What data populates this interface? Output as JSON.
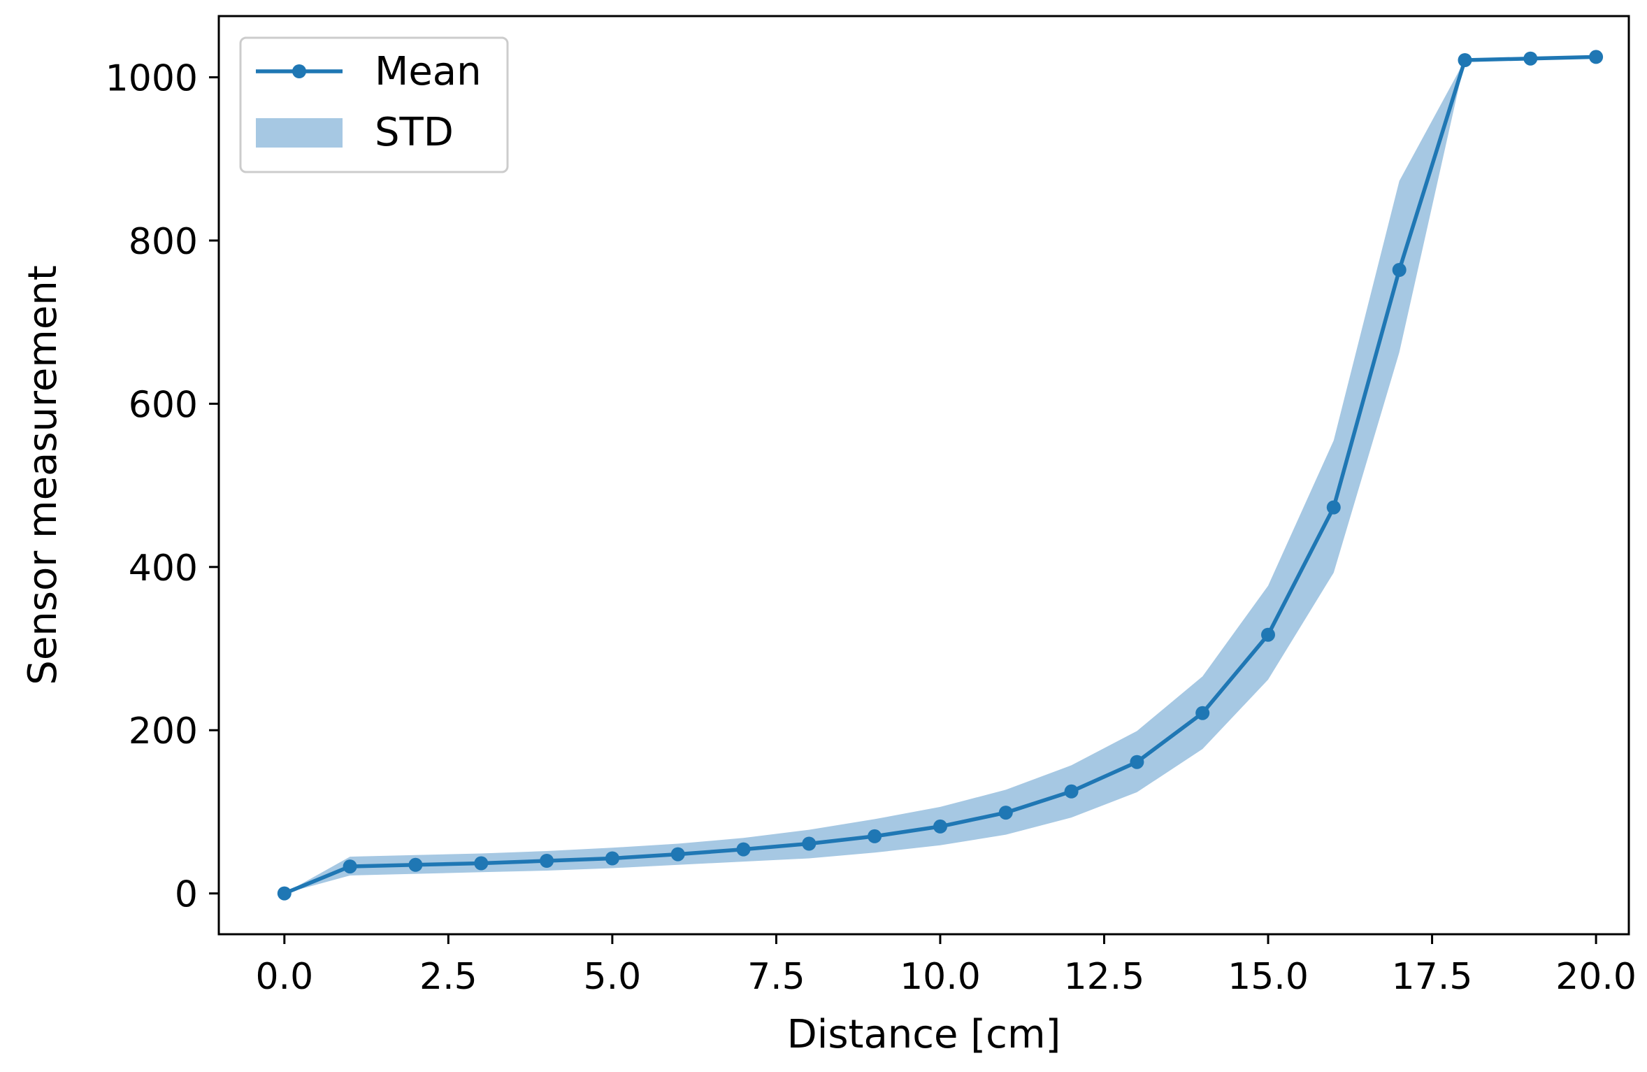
{
  "chart_data": {
    "type": "line",
    "title": "",
    "xlabel": "Distance [cm]",
    "ylabel": "Sensor measurement",
    "xlim": [
      -1,
      20.5
    ],
    "ylim": [
      -50,
      1075
    ],
    "xticks": [
      0.0,
      2.5,
      5.0,
      7.5,
      10.0,
      12.5,
      15.0,
      17.5,
      20.0
    ],
    "xtick_labels": [
      "0.0",
      "2.5",
      "5.0",
      "7.5",
      "10.0",
      "12.5",
      "15.0",
      "17.5",
      "20.0"
    ],
    "yticks": [
      0,
      200,
      400,
      600,
      800,
      1000
    ],
    "ytick_labels": [
      "0",
      "200",
      "400",
      "600",
      "800",
      "1000"
    ],
    "grid": false,
    "legend_position": "top-left",
    "color": "#1f77b4",
    "band_color": "#a6c8e3",
    "x": [
      0,
      1,
      2,
      3,
      4,
      5,
      6,
      7,
      8,
      9,
      10,
      11,
      12,
      13,
      14,
      15,
      16,
      17,
      18,
      19,
      20
    ],
    "series": [
      {
        "name": "Mean",
        "values": [
          0,
          33,
          35,
          37,
          40,
          43,
          48,
          54,
          61,
          70,
          82,
          99,
          125,
          161,
          221,
          317,
          473,
          764,
          1021,
          1023,
          1025
        ]
      },
      {
        "name": "STD",
        "lower": [
          0,
          22,
          24,
          26,
          28,
          31,
          35,
          39,
          43,
          50,
          59,
          72,
          93,
          124,
          177,
          262,
          393,
          663,
          1021,
          1023,
          1025
        ],
        "upper": [
          0,
          45,
          47,
          49,
          52,
          56,
          61,
          68,
          78,
          91,
          106,
          127,
          157,
          199,
          266,
          377,
          555,
          873,
          1021,
          1023,
          1025
        ]
      }
    ]
  }
}
